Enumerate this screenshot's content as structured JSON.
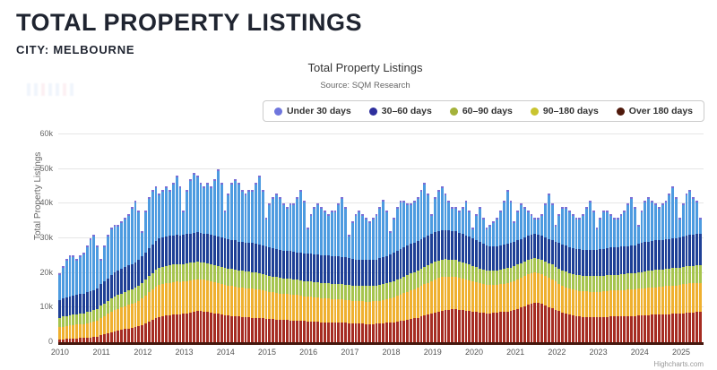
{
  "page": {
    "title": "TOTAL PROPERTY LISTINGS",
    "subtitle": "CITY: MELBOURNE"
  },
  "chart_data": {
    "type": "bar",
    "stacked": true,
    "title": "Total Property Listings",
    "subtitle": "Source: SQM Research",
    "credit": "Highcharts.com",
    "xlabel": "",
    "ylabel": "Total Property Listings",
    "value_unit": "thousands of listings",
    "ylim": [
      0,
      60
    ],
    "ytick_labels": [
      "0",
      "10k",
      "20k",
      "30k",
      "40k",
      "50k",
      "60k"
    ],
    "grid": true,
    "legend_position": "top-right",
    "x_unit": "month",
    "x_start": "2010-01",
    "x_end": "2025-07",
    "x_count": 187,
    "xtick_labels": [
      "2010",
      "2011",
      "2012",
      "2013",
      "2014",
      "2015",
      "2016",
      "2017",
      "2018",
      "2019",
      "2020",
      "2021",
      "2022",
      "2023",
      "2024",
      "2025"
    ],
    "stack_order_note": "series listed top-of-stack first; bottom of stack is Over 180 days",
    "series": [
      {
        "name": "Under 30 days",
        "color": "#4d9be0",
        "marker_color": "#6f76dd",
        "cap_color": "#7b6fd6",
        "values": [
          7.9,
          9.4,
          11.1,
          11.8,
          11.5,
          10.4,
          11.1,
          12,
          13.6,
          15.3,
          15.9,
          12.4,
          7.3,
          10.4,
          12.5,
          13.6,
          13.9,
          13.3,
          13.8,
          14.3,
          14.8,
          16.4,
          17.9,
          14.3,
          7.2,
          12,
          14.8,
          15.7,
          15.7,
          13.1,
          13.7,
          14.4,
          13.3,
          15.1,
          17,
          14.1,
          6.9,
          12.8,
          15.6,
          17.5,
          16.3,
          14.4,
          13.6,
          14.8,
          14,
          16.3,
          19.5,
          15.8,
          8.1,
          13.2,
          16.4,
          17.6,
          16.9,
          15,
          14.2,
          15.2,
          15.4,
          17.5,
          19.7,
          16,
          8.3,
          12.6,
          14.9,
          16.1,
          15.4,
          13.5,
          12.6,
          13.7,
          13.9,
          16,
          18.1,
          15.3,
          7.5,
          11.5,
          13.7,
          14.7,
          13.9,
          12.9,
          12,
          13.1,
          13.1,
          15.2,
          17.3,
          14.4,
          6.7,
          10.9,
          13.1,
          14.1,
          13.2,
          12.3,
          11.3,
          12.2,
          13.1,
          14.8,
          16.5,
          13.2,
          6.6,
          10.2,
          12.6,
          14.2,
          13.6,
          12.1,
          11.6,
          12.2,
          12.8,
          14.2,
          15.7,
          12.2,
          5.7,
          10.3,
          11.9,
          12.7,
          10.6,
          8.7,
          6.8,
          7,
          6.4,
          7.7,
          10.1,
          7.4,
          3,
          7.5,
          10.1,
          7.6,
          5.1,
          6.3,
          7.4,
          8.3,
          10.1,
          12.9,
          15.6,
          12.4,
          6,
          8.6,
          10.2,
          8.7,
          7.2,
          5.9,
          4.6,
          4.9,
          6.3,
          9.7,
          13.2,
          10.6,
          5,
          8.4,
          10.8,
          11.1,
          10.5,
          9.8,
          9,
          9.2,
          10.3,
          12.3,
          14.4,
          11.4,
          6.3,
          9.2,
          11,
          10.8,
          9.6,
          8.6,
          8.5,
          9.3,
          10.3,
          12.2,
          14,
          11,
          5.6,
          9.4,
          12.1,
          12.9,
          11.7,
          10.6,
          9.5,
          10.5,
          11.3,
          13.3,
          15.1,
          12.1,
          5.7,
          9.5,
          12.2,
          13,
          10.9,
          9.8,
          4.8
        ]
      },
      {
        "name": "30–60 days",
        "color": "#1e4096",
        "marker_color": "#2e2f9d",
        "values": [
          5,
          5.2,
          5.3,
          5.4,
          5.5,
          5.5,
          5.6,
          5.6,
          5.7,
          5.8,
          5.9,
          6,
          6.2,
          6.4,
          6.6,
          6.8,
          6.9,
          7,
          7.1,
          7.2,
          7.2,
          7.3,
          7.4,
          7.5,
          7.7,
          7.9,
          8.1,
          8.3,
          8.4,
          8.5,
          8.5,
          8.5,
          8.5,
          8.5,
          8.5,
          8.5,
          8.5,
          8.5,
          8.5,
          8.5,
          8.5,
          8.5,
          8.5,
          8.5,
          8.5,
          8.5,
          8.5,
          8.5,
          8.5,
          8.5,
          8.5,
          8.5,
          8.4,
          8.4,
          8.4,
          8.4,
          8.4,
          8.4,
          8.4,
          8.3,
          8.2,
          8.2,
          8.1,
          8.1,
          8,
          8,
          8,
          8,
          8,
          8,
          8,
          8,
          8,
          8,
          8,
          8,
          8,
          8,
          8,
          8,
          8,
          8,
          8,
          8,
          7.8,
          7.7,
          7.6,
          7.5,
          7.5,
          7.5,
          7.5,
          7.5,
          7.5,
          7.6,
          7.7,
          7.8,
          8,
          8.1,
          8.2,
          8.3,
          8.4,
          8.5,
          8.5,
          8.5,
          8.5,
          8.5,
          8.5,
          8.5,
          8.5,
          8.5,
          8.5,
          8.5,
          8.4,
          8.4,
          8.3,
          8.3,
          8.2,
          8.2,
          8.1,
          8.1,
          8,
          7.8,
          7.6,
          7.4,
          7.2,
          7.1,
          7,
          7,
          7,
          7,
          7,
          7,
          7,
          7,
          7,
          7,
          7,
          7,
          7,
          7,
          7,
          7,
          7,
          7,
          7.2,
          7.3,
          7.4,
          7.5,
          7.5,
          7.5,
          7.5,
          7.5,
          7.5,
          7.5,
          7.5,
          7.5,
          7.6,
          7.7,
          7.8,
          7.9,
          8,
          8,
          8,
          8,
          8,
          8,
          8,
          8,
          8.2,
          8.3,
          8.4,
          8.5,
          8.5,
          8.5,
          8.5,
          8.5,
          8.5,
          8.5,
          8.5,
          8.5,
          8.7,
          8.8,
          8.9,
          9,
          9,
          9,
          9
        ]
      },
      {
        "name": "60–90 days",
        "color": "#a6c44e",
        "marker_color": "#a4b23b",
        "values": [
          2.8,
          2.9,
          2.9,
          3,
          3,
          3,
          3.1,
          3.1,
          3.2,
          3.2,
          3.3,
          3.4,
          3.5,
          3.6,
          3.7,
          3.8,
          3.9,
          4,
          4,
          4.1,
          4.2,
          4.2,
          4.3,
          4.4,
          4.5,
          4.6,
          4.7,
          4.8,
          4.9,
          4.9,
          5,
          5,
          5,
          5,
          5,
          5,
          5,
          5,
          5,
          5,
          5,
          5,
          4.9,
          4.9,
          4.9,
          4.9,
          4.9,
          4.9,
          4.9,
          4.9,
          4.9,
          4.8,
          4.8,
          4.8,
          4.8,
          4.8,
          4.8,
          4.8,
          4.7,
          4.7,
          4.7,
          4.6,
          4.6,
          4.6,
          4.5,
          4.5,
          4.5,
          4.5,
          4.4,
          4.4,
          4.4,
          4.4,
          4.4,
          4.4,
          4.4,
          4.4,
          4.4,
          4.4,
          4.4,
          4.4,
          4.4,
          4.4,
          4.4,
          4.4,
          4.4,
          4.4,
          4.4,
          4.5,
          4.5,
          4.5,
          4.5,
          4.5,
          4.5,
          4.6,
          4.6,
          4.6,
          4.7,
          4.7,
          4.8,
          4.8,
          4.9,
          4.9,
          5,
          5,
          5,
          5.1,
          5.1,
          5.1,
          5.1,
          5.1,
          5.1,
          5,
          5,
          4.9,
          4.9,
          4.8,
          4.8,
          4.7,
          4.7,
          4.6,
          4.5,
          4.4,
          4.3,
          4.2,
          4.1,
          4.1,
          4.1,
          4.1,
          4.2,
          4.2,
          4.3,
          4.3,
          4.3,
          4.3,
          4.2,
          4.2,
          4.2,
          4.1,
          4.1,
          4.1,
          4.1,
          4.2,
          4.2,
          4.3,
          4.3,
          4.4,
          4.4,
          4.5,
          4.5,
          4.5,
          4.5,
          4.5,
          4.5,
          4.5,
          4.5,
          4.5,
          4.5,
          4.5,
          4.5,
          4.5,
          4.5,
          4.5,
          4.5,
          4.6,
          4.6,
          4.6,
          4.7,
          4.7,
          4.8,
          4.8,
          4.9,
          4.9,
          5,
          5,
          5,
          5,
          5,
          5,
          5,
          5,
          5,
          5,
          5,
          5,
          5,
          5,
          5
        ]
      },
      {
        "name": "90–180 days",
        "color": "#efb02f",
        "marker_color": "#c9c430",
        "values": [
          3.5,
          3.6,
          3.7,
          3.8,
          3.9,
          4,
          4,
          4.1,
          4.2,
          4.3,
          4.4,
          4.6,
          5,
          5.3,
          5.6,
          5.9,
          6.1,
          6.3,
          6.5,
          6.6,
          6.8,
          6.9,
          7,
          7.2,
          7.6,
          8,
          8.4,
          8.7,
          9,
          9.2,
          9.3,
          9.4,
          9.4,
          9.5,
          9.5,
          9.4,
          9.4,
          9.3,
          9.3,
          9.2,
          9.2,
          9.1,
          9.1,
          9,
          9,
          8.9,
          8.9,
          8.8,
          8.7,
          8.7,
          8.6,
          8.6,
          8.5,
          8.5,
          8.4,
          8.4,
          8.3,
          8.3,
          8.2,
          8.1,
          8,
          7.9,
          7.8,
          7.7,
          7.6,
          7.6,
          7.5,
          7.5,
          7.4,
          7.4,
          7.3,
          7.2,
          7.1,
          7.1,
          7,
          7,
          6.9,
          6.9,
          6.8,
          6.8,
          6.8,
          6.7,
          6.7,
          6.6,
          6.6,
          6.5,
          6.5,
          6.5,
          6.4,
          6.4,
          6.4,
          6.5,
          6.5,
          6.6,
          6.7,
          6.8,
          7,
          7.2,
          7.4,
          7.6,
          7.8,
          8,
          8.2,
          8.4,
          8.6,
          8.8,
          9,
          9.2,
          9.4,
          9.5,
          9.6,
          9.7,
          9.7,
          9.6,
          9.5,
          9.4,
          9.2,
          9.1,
          9,
          8.9,
          8.7,
          8.6,
          8.4,
          8.3,
          8.2,
          8.1,
          8,
          8,
          8,
          8.1,
          8.2,
          8.3,
          8.4,
          8.5,
          8.6,
          8.7,
          8.8,
          8.8,
          8.8,
          8.7,
          8.6,
          8.5,
          8.4,
          8.3,
          8.1,
          7.9,
          7.8,
          7.7,
          7.6,
          7.5,
          7.5,
          7.4,
          7.4,
          7.4,
          7.4,
          7.4,
          7.4,
          7.4,
          7.4,
          7.5,
          7.5,
          7.5,
          7.5,
          7.6,
          7.6,
          7.6,
          7.7,
          7.7,
          7.7,
          7.8,
          7.8,
          7.9,
          7.9,
          8,
          8,
          8,
          8.1,
          8.1,
          8.2,
          8.2,
          8.3,
          8.3,
          8.4,
          8.4,
          8.5,
          8.5,
          8.5
        ]
      },
      {
        "name": "Over 180 days",
        "color": "#a62c22",
        "marker_color": "#4f190b",
        "values": [
          0.8,
          0.9,
          1,
          1,
          1.1,
          1.1,
          1.2,
          1.2,
          1.3,
          1.4,
          1.5,
          1.6,
          2,
          2.3,
          2.6,
          2.9,
          3.2,
          3.4,
          3.6,
          3.8,
          4,
          4.2,
          4.4,
          4.6,
          5,
          5.5,
          6,
          6.5,
          7,
          7.3,
          7.5,
          7.7,
          7.8,
          7.9,
          8,
          8,
          8.2,
          8.4,
          8.6,
          8.8,
          9,
          9,
          8.9,
          8.8,
          8.6,
          8.4,
          8.2,
          8,
          7.8,
          7.7,
          7.6,
          7.5,
          7.4,
          7.3,
          7.2,
          7.2,
          7.1,
          7,
          7,
          6.9,
          6.8,
          6.7,
          6.6,
          6.5,
          6.5,
          6.4,
          6.4,
          6.3,
          6.3,
          6.2,
          6.2,
          6.1,
          6,
          6,
          5.9,
          5.9,
          5.8,
          5.8,
          5.8,
          5.7,
          5.7,
          5.7,
          5.6,
          5.6,
          5.5,
          5.5,
          5.4,
          5.4,
          5.4,
          5.3,
          5.3,
          5.3,
          5.4,
          5.4,
          5.5,
          5.6,
          5.7,
          5.8,
          6,
          6.1,
          6.3,
          6.5,
          6.7,
          6.9,
          7.1,
          7.4,
          7.7,
          8,
          8.3,
          8.6,
          8.9,
          9.1,
          9.3,
          9.4,
          9.5,
          9.5,
          9.4,
          9.3,
          9.1,
          9,
          8.8,
          8.7,
          8.6,
          8.5,
          8.4,
          8.4,
          8.5,
          8.6,
          8.7,
          8.8,
          8.9,
          9,
          9.3,
          9.6,
          10,
          10.4,
          10.8,
          11.2,
          11.5,
          11.3,
          11,
          10.6,
          10.2,
          9.8,
          9.4,
          9,
          8.6,
          8.2,
          7.9,
          7.7,
          7.5,
          7.4,
          7.3,
          7.3,
          7.2,
          7.2,
          7.2,
          7.2,
          7.3,
          7.3,
          7.4,
          7.4,
          7.5,
          7.5,
          7.5,
          7.6,
          7.6,
          7.6,
          7.7,
          7.7,
          7.8,
          7.8,
          7.9,
          7.9,
          8,
          8,
          8.1,
          8.1,
          8.2,
          8.2,
          8.3,
          8.4,
          8.5,
          8.6,
          8.6,
          8.7,
          8.7
        ]
      }
    ]
  }
}
